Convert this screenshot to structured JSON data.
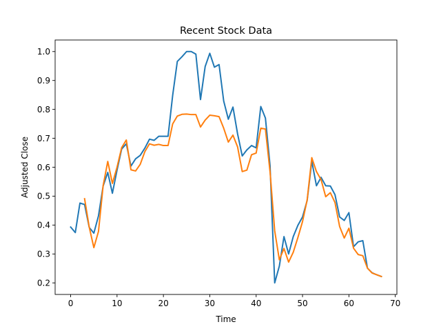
{
  "chart_data": {
    "type": "line",
    "title": "Recent Stock Data",
    "xlabel": "Time",
    "ylabel": "Adjusted Close",
    "xlim": [
      -3.35,
      70.35
    ],
    "ylim": [
      0.16,
      1.04
    ],
    "xticks": [
      0,
      10,
      20,
      30,
      40,
      50,
      60,
      70
    ],
    "yticks": [
      0.2,
      0.3,
      0.4,
      0.5,
      0.6,
      0.7,
      0.8,
      0.9,
      1.0
    ],
    "ytick_labels": [
      "0.2",
      "0.3",
      "0.4",
      "0.5",
      "0.6",
      "0.7",
      "0.8",
      "0.9",
      "1.0"
    ],
    "grid": false,
    "legend": null,
    "series": [
      {
        "color": "#1f77b4",
        "x_start": 0,
        "values": [
          0.393,
          0.374,
          0.476,
          0.471,
          0.392,
          0.372,
          0.432,
          0.535,
          0.582,
          0.51,
          0.59,
          0.663,
          0.681,
          0.604,
          0.629,
          0.641,
          0.666,
          0.697,
          0.693,
          0.707,
          0.707,
          0.707,
          0.849,
          0.966,
          0.982,
          1.0,
          1.0,
          0.991,
          0.834,
          0.948,
          0.994,
          0.946,
          0.955,
          0.829,
          0.766,
          0.808,
          0.715,
          0.639,
          0.66,
          0.675,
          0.667,
          0.81,
          0.77,
          0.605,
          0.2,
          0.258,
          0.36,
          0.3,
          0.36,
          0.399,
          0.428,
          0.485,
          0.621,
          0.536,
          0.565,
          0.536,
          0.535,
          0.505,
          0.428,
          0.416,
          0.443,
          0.325,
          0.342,
          0.346,
          0.251,
          0.235,
          0.228,
          0.222
        ]
      },
      {
        "color": "#ff7f0e",
        "x_start": 3,
        "values": [
          0.491,
          0.393,
          0.322,
          0.378,
          0.536,
          0.62,
          0.544,
          0.6,
          0.668,
          0.694,
          0.591,
          0.587,
          0.61,
          0.654,
          0.681,
          0.676,
          0.679,
          0.675,
          0.675,
          0.75,
          0.777,
          0.783,
          0.784,
          0.782,
          0.782,
          0.739,
          0.763,
          0.78,
          0.778,
          0.775,
          0.735,
          0.687,
          0.711,
          0.67,
          0.585,
          0.59,
          0.643,
          0.649,
          0.735,
          0.732,
          0.584,
          0.38,
          0.28,
          0.319,
          0.272,
          0.306,
          0.357,
          0.412,
          0.487,
          0.633,
          0.585,
          0.557,
          0.498,
          0.512,
          0.478,
          0.395,
          0.355,
          0.389,
          0.32,
          0.298,
          0.294,
          0.251,
          0.234,
          0.228,
          0.222
        ]
      }
    ]
  }
}
